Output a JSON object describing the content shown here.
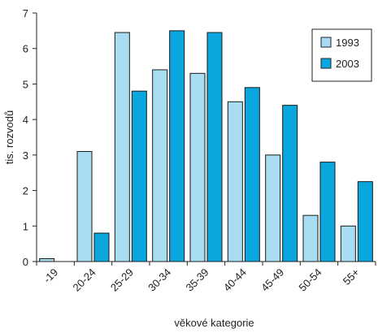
{
  "chart_data": {
    "type": "bar",
    "xlabel": "věkové kategorie",
    "ylabel": "tis. rozvodů",
    "ylim": [
      0,
      7
    ],
    "yticks": [
      0,
      1,
      2,
      3,
      4,
      5,
      6,
      7
    ],
    "grid": false,
    "legend_position": "top-right",
    "categories": [
      "-19",
      "20-24",
      "25-29",
      "30-34",
      "35-39",
      "40-44",
      "45-49",
      "50-54",
      "55+"
    ],
    "series": [
      {
        "name": "1993",
        "color": "#a8dcf0",
        "values": [
          0.08,
          3.1,
          6.45,
          5.4,
          5.3,
          4.5,
          3.0,
          1.3,
          1.0
        ]
      },
      {
        "name": "2003",
        "color": "#0aa6de",
        "values": [
          0.0,
          0.8,
          4.8,
          6.5,
          6.45,
          4.9,
          4.4,
          2.8,
          2.25
        ]
      }
    ]
  }
}
